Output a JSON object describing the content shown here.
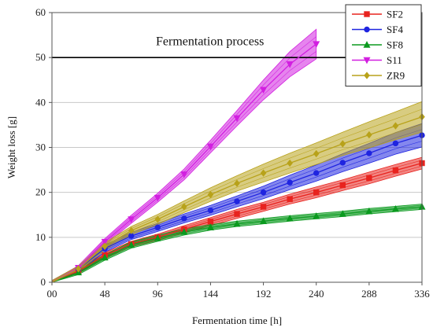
{
  "chart_data": {
    "type": "line",
    "title": "",
    "xlabel": "Fermentation time [h]",
    "ylabel": "Weight loss [g]",
    "xlim": [
      0,
      336
    ],
    "ylim": [
      0,
      60
    ],
    "xticks": [
      0,
      48,
      96,
      144,
      192,
      240,
      288,
      336
    ],
    "xtick_labels": [
      "00",
      "48",
      "96",
      "144",
      "192",
      "240",
      "288",
      "336"
    ],
    "yticks": [
      0,
      10,
      20,
      30,
      40,
      50,
      60
    ],
    "ytick_labels": [
      "0",
      "10",
      "20",
      "30",
      "40",
      "50",
      "60"
    ],
    "grid": "horizontal",
    "legend_position": "top-right",
    "annotation": {
      "text": "Fermentation process",
      "y_line": 50
    },
    "series": [
      {
        "name": "SF2",
        "color": "#e8231e",
        "marker": "square",
        "x": [
          0,
          24,
          48,
          72,
          96,
          120,
          144,
          168,
          192,
          216,
          240,
          264,
          288,
          312,
          336
        ],
        "y": [
          0,
          2.5,
          6.0,
          8.5,
          10.0,
          11.8,
          13.5,
          15.2,
          16.8,
          18.5,
          20.0,
          21.6,
          23.2,
          24.9,
          26.5
        ],
        "band": [
          0.4,
          0.5,
          0.6,
          0.6,
          0.7,
          0.8,
          0.9,
          1.0,
          1.0,
          1.1,
          1.2,
          1.2,
          1.3,
          1.3,
          1.3
        ]
      },
      {
        "name": "SF4",
        "color": "#1f24e0",
        "marker": "circle",
        "x": [
          0,
          24,
          48,
          72,
          96,
          120,
          144,
          168,
          192,
          216,
          240,
          264,
          288,
          312,
          336
        ],
        "y": [
          0,
          3.0,
          7.5,
          10.3,
          12.2,
          14.2,
          16.0,
          18.0,
          20.0,
          22.2,
          24.3,
          26.6,
          28.7,
          30.9,
          32.7
        ],
        "band": [
          0.4,
          0.6,
          0.8,
          0.8,
          0.9,
          1.0,
          1.1,
          1.2,
          1.4,
          1.6,
          1.8,
          2.0,
          2.2,
          2.4,
          2.6
        ]
      },
      {
        "name": "SF8",
        "color": "#0b9a1f",
        "marker": "triangle-up",
        "x": [
          0,
          24,
          48,
          72,
          96,
          120,
          144,
          168,
          192,
          216,
          240,
          264,
          288,
          312,
          336
        ],
        "y": [
          0,
          2.2,
          5.5,
          8.3,
          9.8,
          11.2,
          12.2,
          13.0,
          13.6,
          14.2,
          14.7,
          15.2,
          15.8,
          16.3,
          16.8
        ],
        "band": [
          0.3,
          0.5,
          0.6,
          0.7,
          0.7,
          0.7,
          0.6,
          0.6,
          0.6,
          0.6,
          0.6,
          0.6,
          0.6,
          0.6,
          0.6
        ]
      },
      {
        "name": "S11",
        "color": "#d21fe0",
        "marker": "triangle-down",
        "x": [
          0,
          24,
          48,
          72,
          96,
          120,
          144,
          168,
          192,
          216,
          240
        ],
        "y": [
          0,
          3.2,
          9.0,
          14.0,
          18.8,
          24.0,
          30.2,
          36.5,
          42.8,
          48.5,
          53.0
        ],
        "band": [
          0.3,
          0.5,
          0.7,
          0.9,
          1.0,
          1.2,
          1.4,
          1.7,
          2.2,
          2.8,
          3.3
        ]
      },
      {
        "name": "ZR9",
        "color": "#b8a21a",
        "marker": "diamond",
        "x": [
          0,
          24,
          48,
          72,
          96,
          120,
          144,
          168,
          192,
          216,
          240,
          264,
          288,
          312,
          336
        ],
        "y": [
          0,
          3.0,
          8.0,
          11.5,
          14.0,
          16.8,
          19.5,
          22.0,
          24.3,
          26.5,
          28.6,
          30.8,
          32.8,
          34.8,
          36.8
        ],
        "band": [
          0.4,
          0.6,
          0.8,
          0.9,
          1.1,
          1.3,
          1.5,
          1.7,
          2.0,
          2.2,
          2.4,
          2.6,
          2.9,
          3.1,
          3.4
        ]
      }
    ]
  }
}
